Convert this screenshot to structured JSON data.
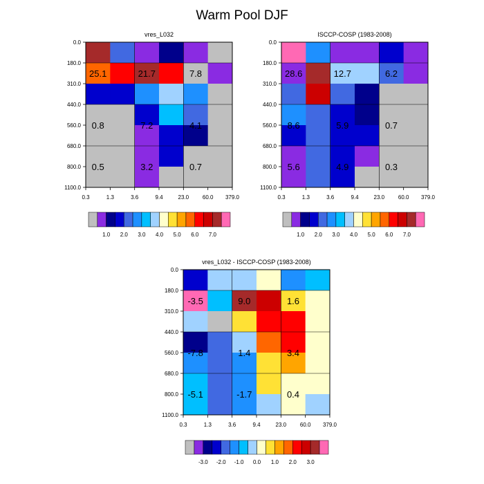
{
  "title": "Warm Pool DJF",
  "axes": {
    "x_ticks": [
      "0.3",
      "1.3",
      "3.6",
      "9.4",
      "23.0",
      "60.0",
      "379.0"
    ],
    "y_ticks": [
      "0.0",
      "180.0",
      "310.0",
      "440.0",
      "560.0",
      "680.0",
      "800.0",
      "1100.0"
    ]
  },
  "colorbars": {
    "abs": {
      "colors": [
        "#bfbfbf",
        "#8a2be2",
        "#00008b",
        "#0000cd",
        "#4169e1",
        "#1e90ff",
        "#00bfff",
        "#a0d2ff",
        "#ffffcc",
        "#ffe135",
        "#ffa500",
        "#ff6600",
        "#ff0000",
        "#cc0000",
        "#a52a2a",
        "#ff69b4"
      ],
      "labels": [
        "1.0",
        "2.0",
        "3.0",
        "4.0",
        "5.0",
        "6.0",
        "7.0"
      ]
    },
    "diff": {
      "colors": [
        "#bfbfbf",
        "#8a2be2",
        "#00008b",
        "#0000cd",
        "#4169e1",
        "#1e90ff",
        "#00bfff",
        "#a0d2ff",
        "#ffffcc",
        "#ffe135",
        "#ffa500",
        "#ff6600",
        "#ff0000",
        "#cc0000",
        "#a52a2a",
        "#ff69b4"
      ],
      "labels": [
        "-3.0",
        "-2.0",
        "-1.0",
        "0.0",
        "1.0",
        "2.0",
        "3.0"
      ]
    }
  },
  "chart_data": [
    {
      "type": "heatmap",
      "title": "vres_L032",
      "colorbar": "abs",
      "cells": [
        [
          "#a52a2a",
          "#4169e1",
          "#8a2be2",
          "#00008b",
          "#8a2be2",
          "#bfbfbf"
        ],
        [
          "#ff6600",
          "#ff0000",
          "#a52a2a",
          "#ff0000",
          "#bfbfbf",
          "#8a2be2"
        ],
        [
          "#0000cd",
          "#0000cd",
          "#1e90ff",
          "#a0d2ff",
          "#1e90ff",
          "#bfbfbf"
        ],
        [
          "#bfbfbf",
          "#bfbfbf",
          "#0000cd",
          "#00bfff",
          "#4169e1",
          "#bfbfbf"
        ],
        [
          "#bfbfbf",
          "#bfbfbf",
          "#8a2be2",
          "#0000cd",
          "#00008b",
          "#bfbfbf"
        ],
        [
          "#bfbfbf",
          "#bfbfbf",
          "#8a2be2",
          "#0000cd",
          "#bfbfbf",
          "#bfbfbf"
        ],
        [
          "#bfbfbf",
          "#bfbfbf",
          "#8a2be2",
          "#bfbfbf",
          "#bfbfbf",
          "#bfbfbf"
        ]
      ],
      "annotations": [
        {
          "text": "25.1",
          "col": 0.5,
          "row": 1.5
        },
        {
          "text": "21.7",
          "col": 2.5,
          "row": 1.5
        },
        {
          "text": "7.8",
          "col": 4.5,
          "row": 1.5
        },
        {
          "text": "0.8",
          "col": 0.5,
          "row": 4.0
        },
        {
          "text": "7.2",
          "col": 2.5,
          "row": 4.0
        },
        {
          "text": "4.1",
          "col": 4.5,
          "row": 4.0
        },
        {
          "text": "0.5",
          "col": 0.5,
          "row": 6.0
        },
        {
          "text": "3.2",
          "col": 2.5,
          "row": 6.0
        },
        {
          "text": "0.7",
          "col": 4.5,
          "row": 6.0
        }
      ]
    },
    {
      "type": "heatmap",
      "title": "ISCCP-COSP (1983-2008)",
      "colorbar": "abs",
      "cells": [
        [
          "#ff69b4",
          "#1e90ff",
          "#8a2be2",
          "#8a2be2",
          "#0000cd",
          "#8a2be2"
        ],
        [
          "#8a2be2",
          "#a52a2a",
          "#a0d2ff",
          "#a0d2ff",
          "#4169e1",
          "#8a2be2"
        ],
        [
          "#4169e1",
          "#cc0000",
          "#4169e1",
          "#00008b",
          "#bfbfbf",
          "#bfbfbf"
        ],
        [
          "#1e90ff",
          "#4169e1",
          "#0000cd",
          "#00008b",
          "#bfbfbf",
          "#bfbfbf"
        ],
        [
          "#0000cd",
          "#4169e1",
          "#0000cd",
          "#0000cd",
          "#bfbfbf",
          "#bfbfbf"
        ],
        [
          "#8a2be2",
          "#4169e1",
          "#0000cd",
          "#8a2be2",
          "#bfbfbf",
          "#bfbfbf"
        ],
        [
          "#8a2be2",
          "#4169e1",
          "#0000cd",
          "#bfbfbf",
          "#bfbfbf",
          "#bfbfbf"
        ]
      ],
      "annotations": [
        {
          "text": "28.6",
          "col": 0.5,
          "row": 1.5
        },
        {
          "text": "12.7",
          "col": 2.5,
          "row": 1.5
        },
        {
          "text": "6.2",
          "col": 4.5,
          "row": 1.5
        },
        {
          "text": "8.6",
          "col": 0.5,
          "row": 4.0
        },
        {
          "text": "5.9",
          "col": 2.5,
          "row": 4.0
        },
        {
          "text": "0.7",
          "col": 4.5,
          "row": 4.0
        },
        {
          "text": "5.6",
          "col": 0.5,
          "row": 6.0
        },
        {
          "text": "4.9",
          "col": 2.5,
          "row": 6.0
        },
        {
          "text": "0.3",
          "col": 4.5,
          "row": 6.0
        }
      ]
    },
    {
      "type": "heatmap",
      "title": "vres_L032 - ISCCP-COSP (1983-2008)",
      "colorbar": "diff",
      "cells": [
        [
          "#0000cd",
          "#a0d2ff",
          "#a0d2ff",
          "#ffffcc",
          "#1e90ff",
          "#00bfff"
        ],
        [
          "#ff69b4",
          "#00bfff",
          "#a52a2a",
          "#cc0000",
          "#ffe135",
          "#ffffcc"
        ],
        [
          "#a0d2ff",
          "#bfbfbf",
          "#ffe135",
          "#ff0000",
          "#ff0000",
          "#ffffcc"
        ],
        [
          "#00008b",
          "#4169e1",
          "#a0d2ff",
          "#ff6600",
          "#ff0000",
          "#ffffcc"
        ],
        [
          "#1e90ff",
          "#4169e1",
          "#1e90ff",
          "#ffe135",
          "#ffa500",
          "#ffffcc"
        ],
        [
          "#00bfff",
          "#4169e1",
          "#1e90ff",
          "#ffe135",
          "#ffffcc",
          "#ffffcc"
        ],
        [
          "#00bfff",
          "#4169e1",
          "#1e90ff",
          "#a0d2ff",
          "#ffffcc",
          "#a0d2ff"
        ]
      ],
      "annotations": [
        {
          "text": "-3.5",
          "col": 0.5,
          "row": 1.5
        },
        {
          "text": "9.0",
          "col": 2.5,
          "row": 1.5
        },
        {
          "text": "1.6",
          "col": 4.5,
          "row": 1.5
        },
        {
          "text": "-7.8",
          "col": 0.5,
          "row": 4.0
        },
        {
          "text": "1.4",
          "col": 2.5,
          "row": 4.0
        },
        {
          "text": "3.4",
          "col": 4.5,
          "row": 4.0
        },
        {
          "text": "-5.1",
          "col": 0.5,
          "row": 6.0
        },
        {
          "text": "-1.7",
          "col": 2.5,
          "row": 6.0
        },
        {
          "text": "0.4",
          "col": 4.5,
          "row": 6.0
        }
      ]
    }
  ]
}
